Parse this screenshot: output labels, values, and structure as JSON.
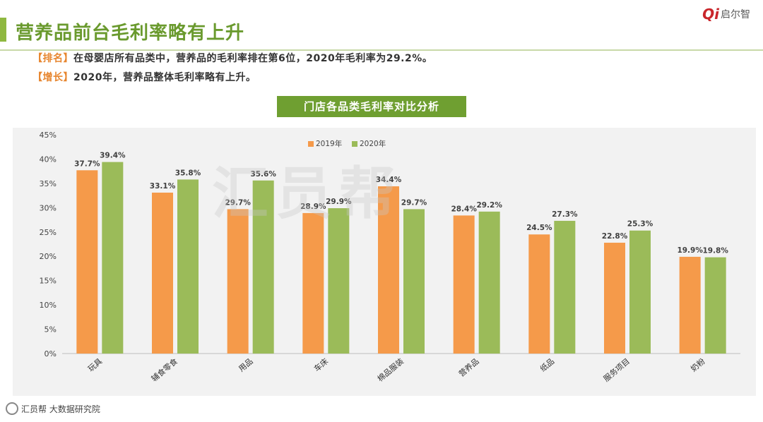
{
  "page": {
    "title": "营养品前台毛利率略有上升",
    "logo_mark": "Qi",
    "logo_text": "启尔智",
    "summary": [
      {
        "tag": "【排名】",
        "text": "在母婴店所有品类中，营养品的毛利率排在第6位，2020年毛利率为29.2%。"
      },
      {
        "tag": "【增长】",
        "text": "2020年，营养品整体毛利率略有上升。"
      }
    ],
    "watermark": "汇员帮",
    "footer": "汇员帮 大数据研究院"
  },
  "colors": {
    "accent_green": "#6f9f31",
    "title_green": "#6a9a2e",
    "series_2019": "#f59a4a",
    "series_2020": "#9bbb59",
    "tag_orange": "#e7862f"
  },
  "chart_data": {
    "type": "bar",
    "title": "门店各品类毛利率对比分析",
    "categories": [
      "玩具",
      "辅食零食",
      "用品",
      "车床",
      "棉品服装",
      "营养品",
      "纸品",
      "服务项目",
      "奶粉"
    ],
    "series": [
      {
        "name": "2019年",
        "values": [
          37.7,
          33.1,
          29.7,
          28.9,
          34.4,
          28.4,
          24.5,
          22.8,
          19.9
        ]
      },
      {
        "name": "2020年",
        "values": [
          39.4,
          35.8,
          35.6,
          29.9,
          29.7,
          29.2,
          27.3,
          25.3,
          19.8
        ]
      }
    ],
    "data_labels": [
      [
        "37.7%",
        "33.1%",
        "29.7%",
        "28.9%",
        "34.4%",
        "28.4%",
        "24.5%",
        "22.8%",
        "19.9%"
      ],
      [
        "39.4%",
        "35.8%",
        "35.6%",
        "29.9%",
        "29.7%",
        "29.2%",
        "27.3%",
        "25.3%",
        "19.8%"
      ]
    ],
    "yticks": [
      "0%",
      "5%",
      "10%",
      "15%",
      "20%",
      "25%",
      "30%",
      "35%",
      "40%",
      "45%"
    ],
    "ylim": [
      0,
      45
    ],
    "ystep": 5,
    "legend_position": "top-center",
    "grid": false
  }
}
